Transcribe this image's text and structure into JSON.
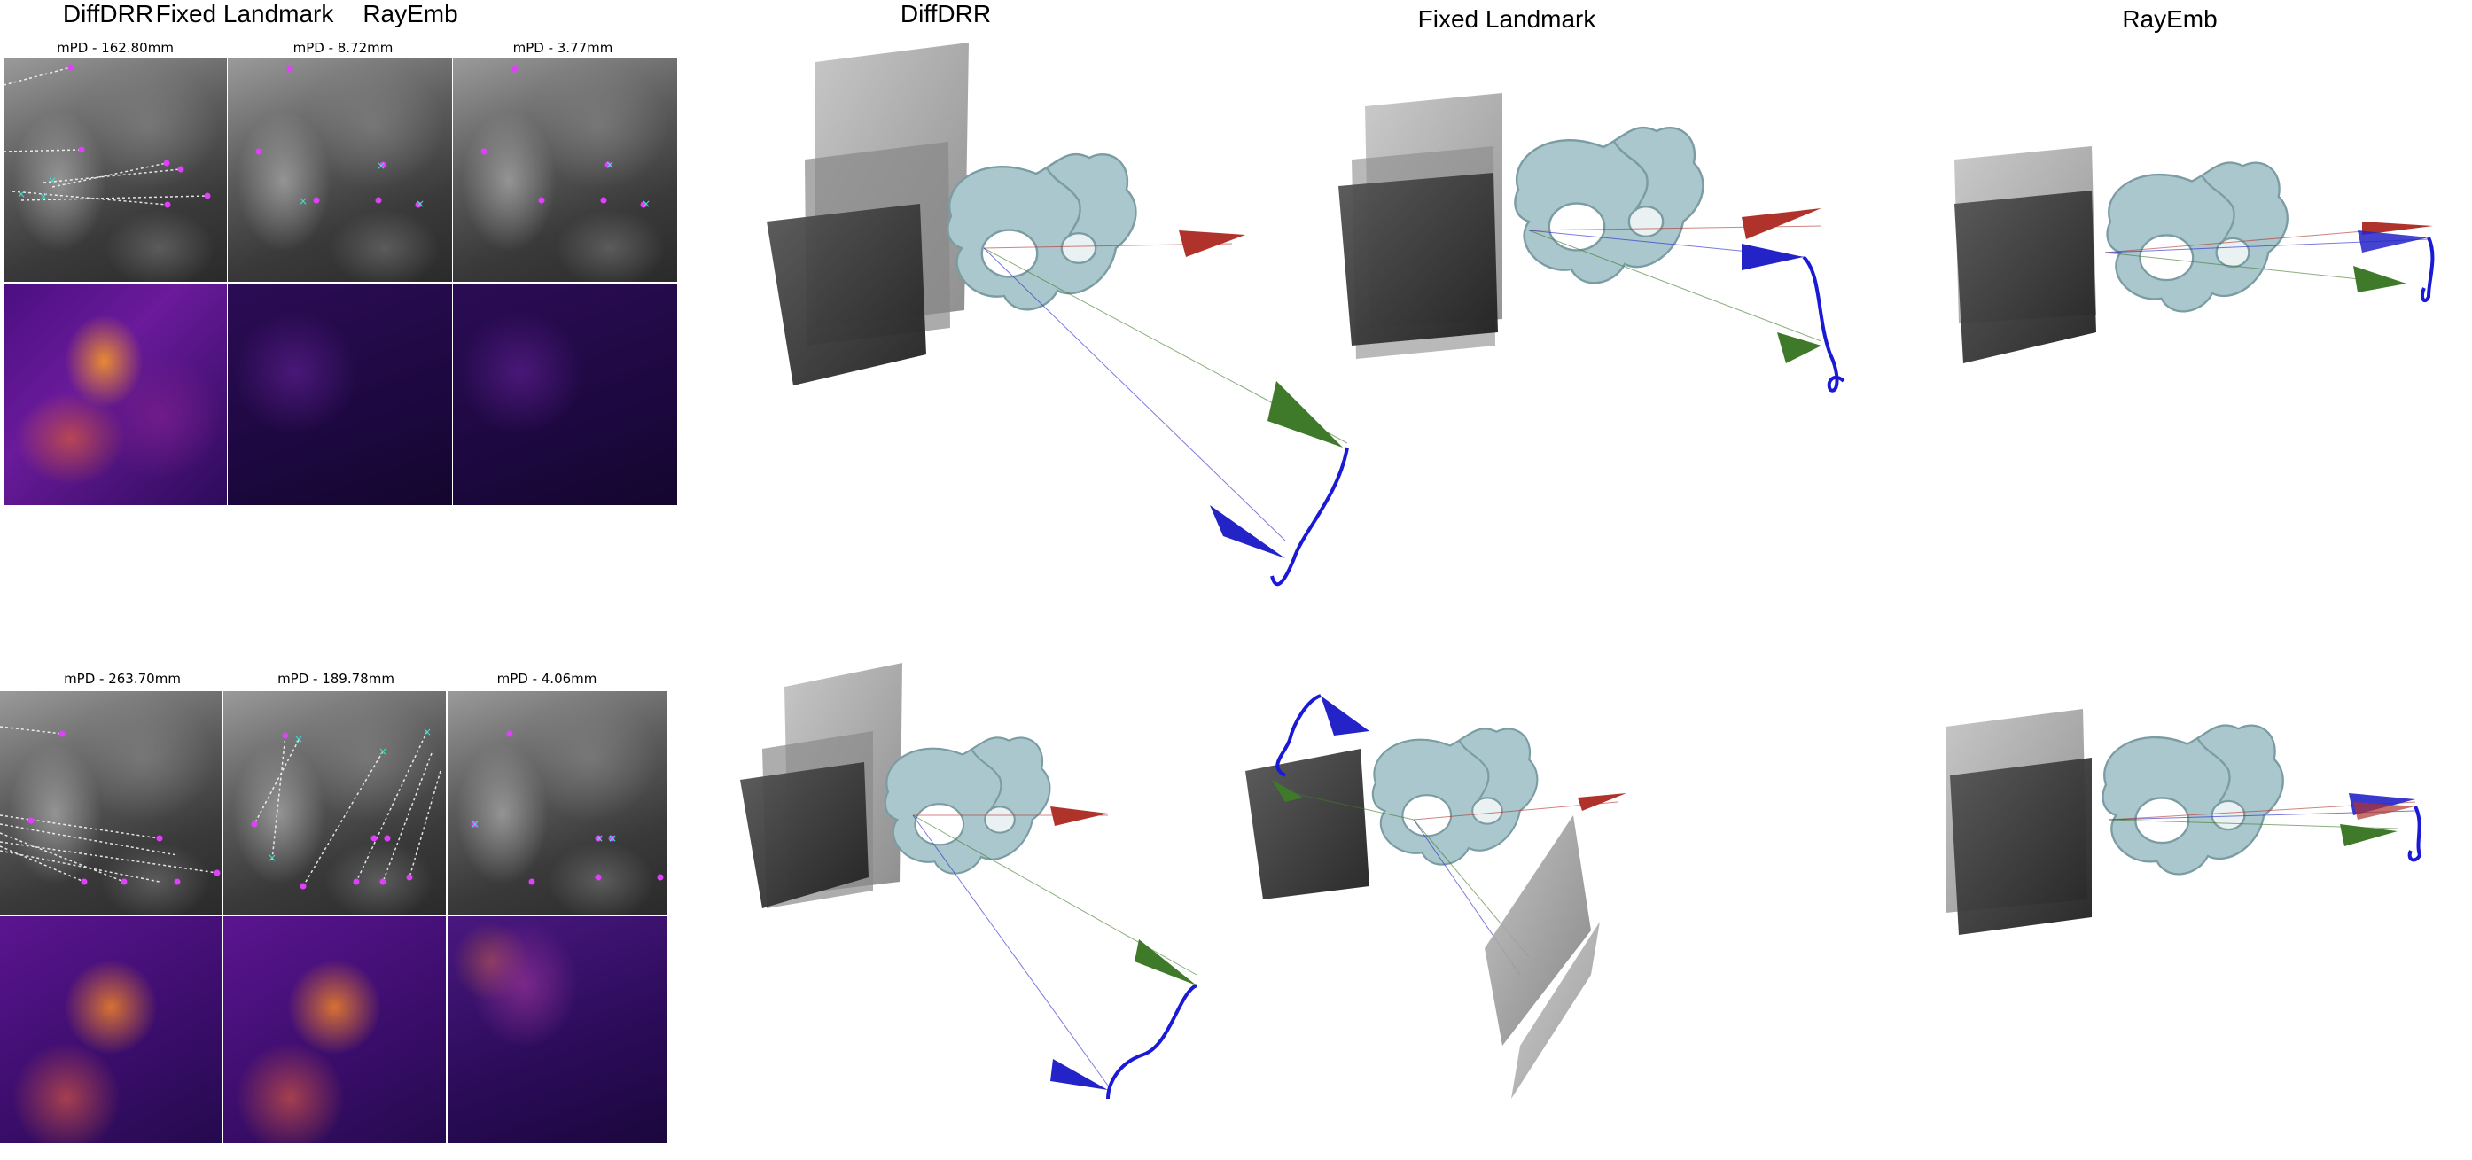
{
  "column_titles": [
    "DiffDRR",
    "Fixed Landmark",
    "RayEmb",
    "DiffDRR",
    "Fixed Landmark",
    "RayEmb"
  ],
  "row1_mpd": [
    "mPD - 162.80mm",
    "mPD - 8.72mm",
    "mPD - 3.77mm"
  ],
  "row2_mpd": [
    "mPD - 263.70mm",
    "mPD - 189.78mm",
    "mPD - 4.06mm"
  ],
  "colors": {
    "landmark_pred": "#e040fb",
    "landmark_gt": "#40e0d0",
    "bone": "#a9c7cc",
    "camera_red": "#b0332b",
    "camera_green": "#3f7a2a",
    "camera_blue": "#2323c8",
    "trajectory": "#1a1ad6"
  }
}
